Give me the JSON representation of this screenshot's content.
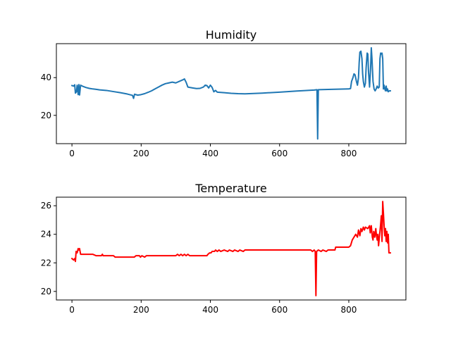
{
  "chart_data": [
    {
      "type": "line",
      "title": "Humidity",
      "xlabel": "",
      "ylabel": "",
      "xlim": [
        -45,
        965
      ],
      "ylim": [
        5,
        58
      ],
      "xticks": [
        0,
        200,
        400,
        600,
        800
      ],
      "yticks": [
        20,
        40
      ],
      "grid": false,
      "legend": "none",
      "series": [
        {
          "color": "#1f77b4",
          "points": [
            [
              0,
              35.8
            ],
            [
              5,
              35.5
            ],
            [
              8,
              36.2
            ],
            [
              10,
              31.8
            ],
            [
              13,
              32.5
            ],
            [
              15,
              36.0
            ],
            [
              18,
              31.0
            ],
            [
              20,
              36.3
            ],
            [
              22,
              30.8
            ],
            [
              25,
              36.0
            ],
            [
              30,
              35.5
            ],
            [
              40,
              34.8
            ],
            [
              50,
              34.3
            ],
            [
              60,
              34.0
            ],
            [
              70,
              33.8
            ],
            [
              80,
              33.5
            ],
            [
              100,
              33.2
            ],
            [
              120,
              32.6
            ],
            [
              140,
              32.0
            ],
            [
              160,
              31.3
            ],
            [
              175,
              30.6
            ],
            [
              178,
              29.0
            ],
            [
              181,
              31.2
            ],
            [
              190,
              30.7
            ],
            [
              200,
              31.0
            ],
            [
              210,
              31.5
            ],
            [
              220,
              32.2
            ],
            [
              230,
              33.0
            ],
            [
              240,
              34.0
            ],
            [
              250,
              35.0
            ],
            [
              260,
              36.0
            ],
            [
              270,
              36.8
            ],
            [
              280,
              37.2
            ],
            [
              290,
              37.6
            ],
            [
              300,
              37.2
            ],
            [
              310,
              38.0
            ],
            [
              320,
              38.8
            ],
            [
              325,
              39.3
            ],
            [
              330,
              37.5
            ],
            [
              335,
              35.0
            ],
            [
              340,
              34.8
            ],
            [
              350,
              34.5
            ],
            [
              360,
              34.2
            ],
            [
              370,
              34.3
            ],
            [
              380,
              35.0
            ],
            [
              385,
              36.0
            ],
            [
              390,
              35.8
            ],
            [
              395,
              34.5
            ],
            [
              400,
              36.0
            ],
            [
              405,
              34.8
            ],
            [
              410,
              32.5
            ],
            [
              415,
              33.2
            ],
            [
              420,
              32.3
            ],
            [
              440,
              32.0
            ],
            [
              460,
              31.7
            ],
            [
              480,
              31.5
            ],
            [
              500,
              31.4
            ],
            [
              550,
              31.8
            ],
            [
              600,
              32.3
            ],
            [
              650,
              32.9
            ],
            [
              700,
              33.4
            ],
            [
              708,
              33.6
            ],
            [
              710,
              7.5
            ],
            [
              712,
              33.6
            ],
            [
              750,
              33.8
            ],
            [
              800,
              34.0
            ],
            [
              805,
              34.2
            ],
            [
              808,
              38.0
            ],
            [
              812,
              40.0
            ],
            [
              815,
              42.0
            ],
            [
              818,
              41.5
            ],
            [
              822,
              38.0
            ],
            [
              825,
              36.0
            ],
            [
              828,
              40.0
            ],
            [
              830,
              48.0
            ],
            [
              832,
              53.5
            ],
            [
              835,
              54.0
            ],
            [
              838,
              50.0
            ],
            [
              840,
              42.0
            ],
            [
              842,
              38.0
            ],
            [
              845,
              35.0
            ],
            [
              848,
              37.0
            ],
            [
              850,
              45.0
            ],
            [
              853,
              53.0
            ],
            [
              855,
              52.5
            ],
            [
              857,
              43.0
            ],
            [
              860,
              35.0
            ],
            [
              863,
              45.0
            ],
            [
              865,
              55.8
            ],
            [
              867,
              50.0
            ],
            [
              870,
              38.0
            ],
            [
              873,
              34.0
            ],
            [
              876,
              33.0
            ],
            [
              879,
              34.0
            ],
            [
              882,
              35.5
            ],
            [
              885,
              34.5
            ],
            [
              888,
              35.0
            ],
            [
              890,
              50.0
            ],
            [
              892,
              53.0
            ],
            [
              894,
              52.5
            ],
            [
              896,
              53.0
            ],
            [
              898,
              50.0
            ],
            [
              900,
              34.0
            ],
            [
              902,
              36.0
            ],
            [
              904,
              34.0
            ],
            [
              906,
              33.0
            ],
            [
              908,
              35.5
            ],
            [
              910,
              33.0
            ],
            [
              912,
              34.0
            ],
            [
              914,
              32.5
            ],
            [
              917,
              33.0
            ],
            [
              920,
              33.0
            ]
          ]
        }
      ]
    },
    {
      "type": "line",
      "title": "Temperature",
      "xlabel": "",
      "ylabel": "",
      "xlim": [
        -45,
        965
      ],
      "ylim": [
        19.4,
        26.6
      ],
      "xticks": [
        0,
        200,
        400,
        600,
        800
      ],
      "yticks": [
        20,
        22,
        24,
        26
      ],
      "grid": false,
      "legend": "none",
      "series": [
        {
          "color": "#ff0000",
          "points": [
            [
              0,
              22.3
            ],
            [
              5,
              22.2
            ],
            [
              8,
              22.3
            ],
            [
              10,
              22.1
            ],
            [
              12,
              22.8
            ],
            [
              15,
              22.7
            ],
            [
              18,
              23.0
            ],
            [
              20,
              22.9
            ],
            [
              22,
              23.0
            ],
            [
              25,
              22.6
            ],
            [
              40,
              22.6
            ],
            [
              60,
              22.6
            ],
            [
              70,
              22.5
            ],
            [
              85,
              22.5
            ],
            [
              88,
              22.6
            ],
            [
              90,
              22.5
            ],
            [
              120,
              22.5
            ],
            [
              125,
              22.4
            ],
            [
              180,
              22.4
            ],
            [
              185,
              22.5
            ],
            [
              195,
              22.5
            ],
            [
              198,
              22.4
            ],
            [
              202,
              22.5
            ],
            [
              210,
              22.4
            ],
            [
              215,
              22.5
            ],
            [
              250,
              22.5
            ],
            [
              300,
              22.5
            ],
            [
              305,
              22.6
            ],
            [
              310,
              22.5
            ],
            [
              315,
              22.6
            ],
            [
              320,
              22.5
            ],
            [
              325,
              22.6
            ],
            [
              330,
              22.5
            ],
            [
              335,
              22.6
            ],
            [
              340,
              22.5
            ],
            [
              390,
              22.5
            ],
            [
              393,
              22.6
            ],
            [
              398,
              22.7
            ],
            [
              402,
              22.7
            ],
            [
              405,
              22.8
            ],
            [
              412,
              22.8
            ],
            [
              415,
              22.9
            ],
            [
              420,
              22.8
            ],
            [
              425,
              22.9
            ],
            [
              430,
              22.8
            ],
            [
              440,
              22.9
            ],
            [
              450,
              22.8
            ],
            [
              455,
              22.9
            ],
            [
              465,
              22.8
            ],
            [
              470,
              22.9
            ],
            [
              480,
              22.8
            ],
            [
              485,
              22.9
            ],
            [
              495,
              22.8
            ],
            [
              500,
              22.9
            ],
            [
              600,
              22.9
            ],
            [
              650,
              22.9
            ],
            [
              690,
              22.9
            ],
            [
              695,
              22.8
            ],
            [
              700,
              22.9
            ],
            [
              703,
              22.8
            ],
            [
              705,
              19.7
            ],
            [
              707,
              22.8
            ],
            [
              712,
              22.9
            ],
            [
              720,
              22.8
            ],
            [
              725,
              22.9
            ],
            [
              735,
              22.8
            ],
            [
              740,
              22.9
            ],
            [
              760,
              22.9
            ],
            [
              762,
              23.1
            ],
            [
              800,
              23.1
            ],
            [
              805,
              23.2
            ],
            [
              810,
              23.6
            ],
            [
              815,
              23.8
            ],
            [
              820,
              24.0
            ],
            [
              825,
              23.8
            ],
            [
              828,
              24.3
            ],
            [
              832,
              23.9
            ],
            [
              835,
              24.4
            ],
            [
              838,
              24.2
            ],
            [
              842,
              24.5
            ],
            [
              845,
              24.3
            ],
            [
              848,
              24.5
            ],
            [
              855,
              24.4
            ],
            [
              860,
              24.6
            ],
            [
              862,
              24.1
            ],
            [
              865,
              24.6
            ],
            [
              868,
              23.8
            ],
            [
              870,
              23.6
            ],
            [
              872,
              24.2
            ],
            [
              875,
              23.8
            ],
            [
              878,
              24.4
            ],
            [
              880,
              23.9
            ],
            [
              882,
              23.6
            ],
            [
              884,
              24.0
            ],
            [
              886,
              23.2
            ],
            [
              888,
              23.7
            ],
            [
              890,
              24.2
            ],
            [
              892,
              24.7
            ],
            [
              894,
              25.3
            ],
            [
              896,
              23.5
            ],
            [
              898,
              26.3
            ],
            [
              900,
              25.5
            ],
            [
              902,
              24.6
            ],
            [
              904,
              23.9
            ],
            [
              906,
              24.4
            ],
            [
              908,
              23.5
            ],
            [
              910,
              24.2
            ],
            [
              912,
              23.4
            ],
            [
              914,
              24.0
            ],
            [
              916,
              22.7
            ],
            [
              920,
              22.7
            ]
          ]
        }
      ]
    }
  ]
}
